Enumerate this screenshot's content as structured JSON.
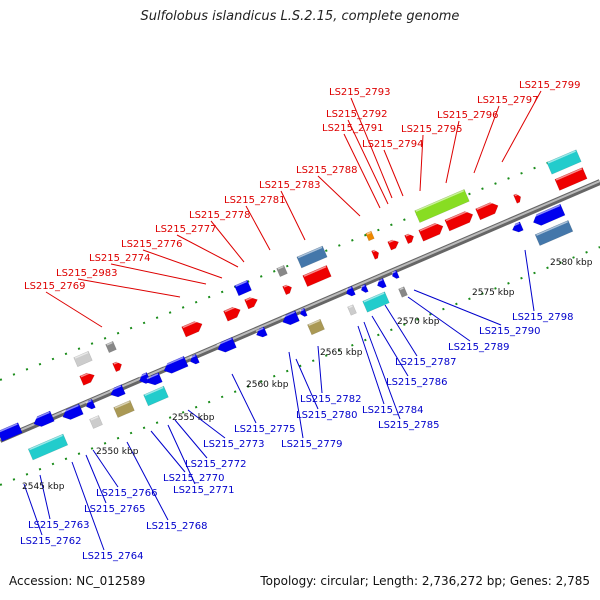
{
  "title": "Sulfolobus islandicus L.S.2.15, complete genome",
  "footer": {
    "accession": "Accession: NC_012589",
    "summary": "Topology: circular; Length: 2,736,272 bp; Genes: 2,785"
  },
  "colors": {
    "forward_label": "#dd0000",
    "reverse_label": "#0000cc",
    "backbone": "#888888",
    "tick": "#1a8c1a",
    "cds_forward": "#ee0000",
    "cds_reverse": "#0000ee",
    "cyan": "#22cccc",
    "steel": "#4477aa",
    "khaki": "#aa9955",
    "gray": "#888888",
    "lightgray": "#cccccc",
    "lime": "#88dd22",
    "orange": "#ee8800"
  },
  "scale_labels": [
    "2545 kbp",
    "2550 kbp",
    "2555 kbp",
    "2560 kbp",
    "2565 kbp",
    "2570 kbp",
    "2575 kbp",
    "2580 kbp"
  ],
  "forward_labels": [
    "LS215_2769",
    "LS215_2983",
    "LS215_2774",
    "LS215_2776",
    "LS215_2777",
    "LS215_2778",
    "LS215_2781",
    "LS215_2783",
    "LS215_2788",
    "LS215_2791",
    "LS215_2792",
    "LS215_2793",
    "LS215_2794",
    "LS215_2795",
    "LS215_2796",
    "LS215_2797",
    "LS215_2799"
  ],
  "reverse_labels": [
    "LS215_2762",
    "LS215_2763",
    "LS215_2764",
    "LS215_2765",
    "LS215_2766",
    "LS215_2768",
    "LS215_2770",
    "LS215_2771",
    "LS215_2772",
    "LS215_2773",
    "LS215_2775",
    "LS215_2779",
    "LS215_2780",
    "LS215_2782",
    "LS215_2784",
    "LS215_2785",
    "LS215_2786",
    "LS215_2787",
    "LS215_2789",
    "LS215_2790",
    "LS215_2798"
  ]
}
